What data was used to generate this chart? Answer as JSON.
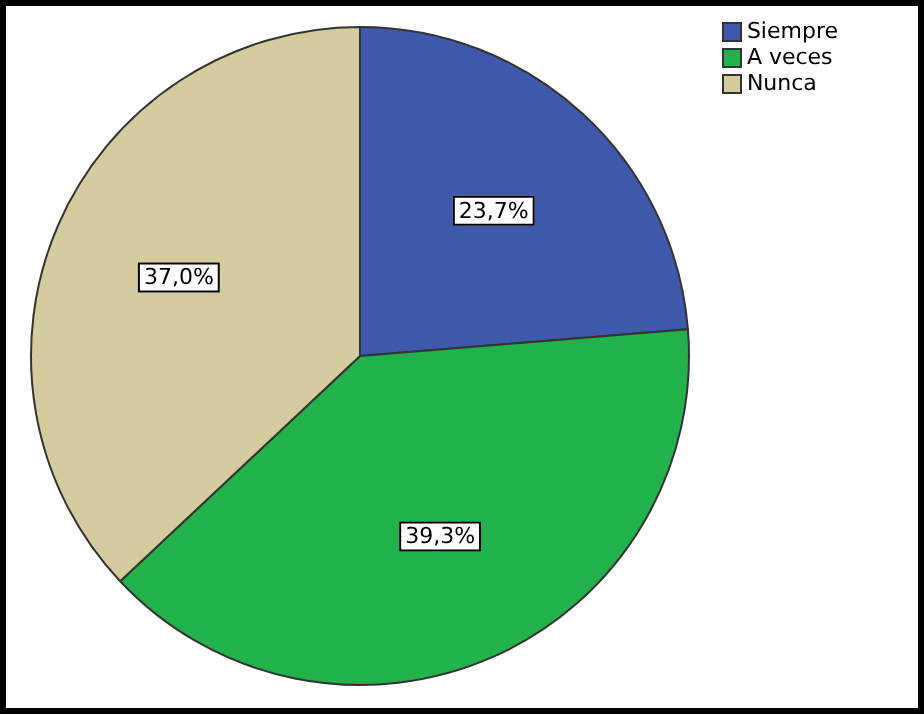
{
  "chart_data": {
    "type": "pie",
    "categories": [
      "Siempre",
      "A veces",
      "Nunca"
    ],
    "values": [
      23.7,
      39.3,
      37.0
    ],
    "colors": [
      "#3e58ac",
      "#21b24b",
      "#d4cc9f"
    ],
    "value_labels": [
      "23,7%",
      "39,3%",
      "37,0%"
    ],
    "legend": "top right"
  }
}
